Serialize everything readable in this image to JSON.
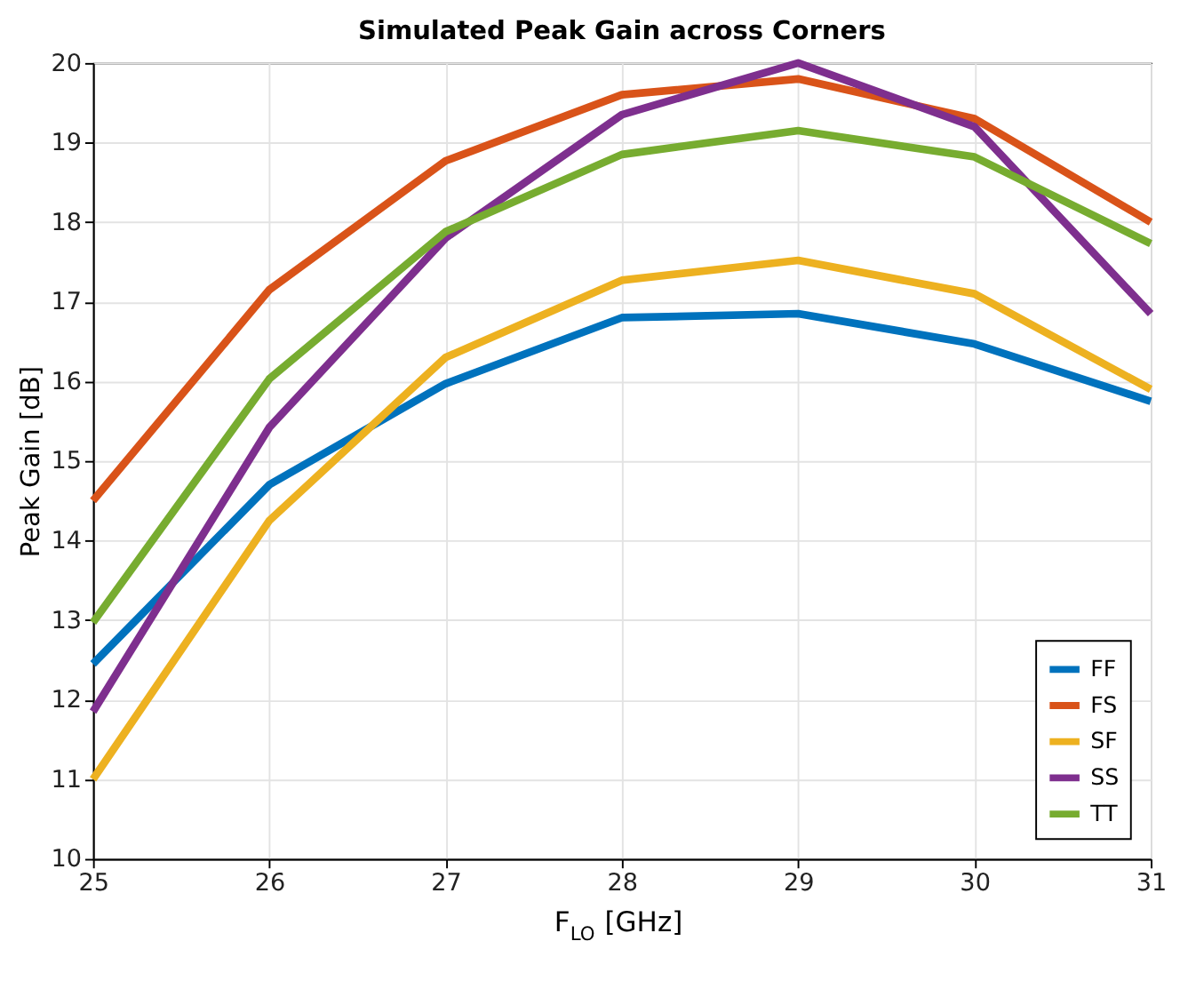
{
  "chart_data": {
    "type": "line",
    "title": "Simulated Peak Gain across Corners",
    "xlabel": "F$_{LO}$ [GHz]",
    "ylabel": "Peak Gain [dB]",
    "x": [
      25,
      26,
      27,
      28,
      29,
      30,
      31
    ],
    "series": [
      {
        "name": "FF",
        "color": "#0072bd",
        "values": [
          12.45,
          14.7,
          15.97,
          16.8,
          16.85,
          16.47,
          15.75
        ]
      },
      {
        "name": "FS",
        "color": "#d95319",
        "values": [
          14.5,
          17.15,
          18.77,
          19.6,
          19.8,
          19.3,
          18.0
        ]
      },
      {
        "name": "SF",
        "color": "#edb120",
        "values": [
          11.0,
          14.25,
          16.3,
          17.27,
          17.52,
          17.1,
          15.9
        ]
      },
      {
        "name": "SS",
        "color": "#7e2f8e",
        "values": [
          11.85,
          15.42,
          17.8,
          19.35,
          20.0,
          19.2,
          16.85
        ]
      },
      {
        "name": "TT",
        "color": "#77ac30",
        "values": [
          12.97,
          16.03,
          17.88,
          18.85,
          19.15,
          18.82,
          17.73
        ]
      }
    ],
    "xlim": [
      25,
      31
    ],
    "xticks": [
      25,
      26,
      27,
      28,
      29,
      30,
      31
    ],
    "ylim": [
      10,
      20
    ],
    "yticks": [
      10,
      11,
      12,
      13,
      14,
      15,
      16,
      17,
      18,
      19,
      20
    ],
    "grid": true,
    "legend": "bottom right",
    "line_style": "solid"
  }
}
